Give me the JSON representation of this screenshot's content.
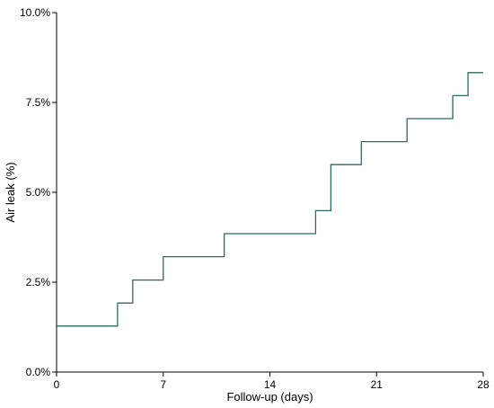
{
  "chart_data": {
    "type": "line",
    "line_style": "step",
    "title": "",
    "xlabel": "Follow-up (days)",
    "ylabel": "Air leak (%)",
    "xlim": [
      0,
      28
    ],
    "ylim": [
      0,
      10
    ],
    "x_ticks": [
      0,
      7,
      14,
      21,
      28
    ],
    "x_tick_labels": [
      "0",
      "7",
      "14",
      "21",
      "28"
    ],
    "y_ticks": [
      0,
      2.5,
      5,
      7.5,
      10
    ],
    "y_tick_labels": [
      "0.0%",
      "2.5%",
      "5.0%",
      "7.5%",
      "10.0%"
    ],
    "grid": false,
    "series": [
      {
        "color": "#2e6b60",
        "x": [
          0,
          4,
          5,
          7,
          11,
          17,
          18,
          20,
          23,
          26,
          27,
          28
        ],
        "y": [
          1.28,
          1.92,
          2.56,
          3.21,
          3.85,
          4.49,
          5.77,
          6.41,
          7.05,
          7.69,
          8.33,
          8.33
        ]
      }
    ]
  }
}
